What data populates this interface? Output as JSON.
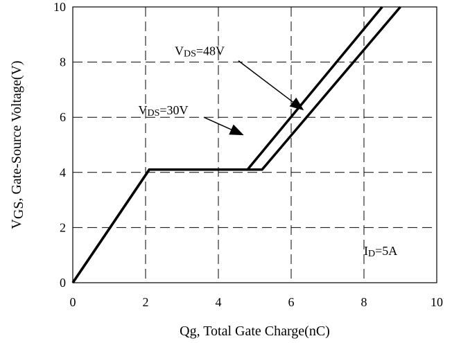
{
  "chart_data": {
    "type": "line",
    "xlabel": "Qg, Total Gate Charge(nC)",
    "ylabel_parts": [
      {
        "text": "V",
        "sub": false
      },
      {
        "text": "GS",
        "sub": true
      },
      {
        "text": ", Gate-Source Voltage(V)",
        "sub": false
      }
    ],
    "xlim": [
      0,
      10
    ],
    "ylim": [
      0,
      10
    ],
    "x_ticks": [
      0,
      2,
      4,
      6,
      8,
      10
    ],
    "y_ticks": [
      0,
      2,
      4,
      6,
      8,
      10
    ],
    "grid": true,
    "series": [
      {
        "label_parts": [
          {
            "text": "V",
            "sub": false
          },
          {
            "text": "DS",
            "sub": true
          },
          {
            "text": "=30V",
            "sub": false
          }
        ],
        "x": [
          0,
          2.1,
          4.8,
          8.5
        ],
        "y": [
          0,
          4.1,
          4.1,
          10
        ]
      },
      {
        "label_parts": [
          {
            "text": "V",
            "sub": false
          },
          {
            "text": "DS",
            "sub": true
          },
          {
            "text": "=48V",
            "sub": false
          }
        ],
        "x": [
          0,
          2.1,
          5.2,
          9.0
        ],
        "y": [
          0,
          4.1,
          4.1,
          10
        ]
      }
    ],
    "annotations": [
      {
        "parts": [
          {
            "text": "V",
            "sub": false
          },
          {
            "text": "DS",
            "sub": true
          },
          {
            "text": "=48V",
            "sub": false
          }
        ],
        "text_at": [
          2.8,
          8.25
        ],
        "arrow_from": [
          4.55,
          8.05
        ],
        "arrow_to": [
          6.35,
          6.25
        ]
      },
      {
        "parts": [
          {
            "text": "V",
            "sub": false
          },
          {
            "text": "DS",
            "sub": true
          },
          {
            "text": "=30V",
            "sub": false
          }
        ],
        "text_at": [
          1.8,
          6.1
        ],
        "arrow_from": [
          3.6,
          6.0
        ],
        "arrow_to": [
          4.7,
          5.35
        ]
      },
      {
        "parts": [
          {
            "text": "I",
            "sub": false
          },
          {
            "text": "D",
            "sub": true
          },
          {
            "text": "=5A",
            "sub": false
          }
        ],
        "text_at": [
          8.0,
          1.0
        ]
      }
    ]
  }
}
